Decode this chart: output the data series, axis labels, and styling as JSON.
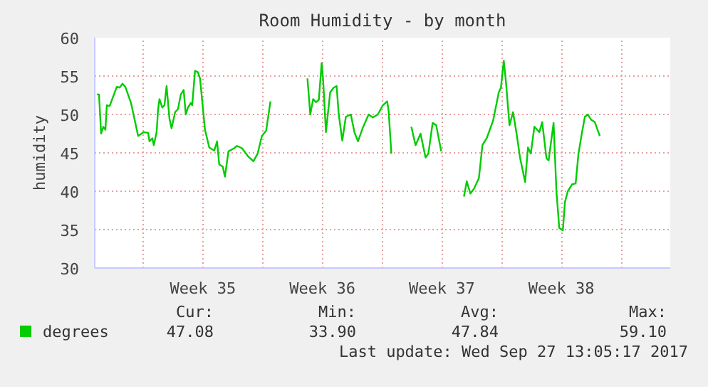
{
  "chart_data": {
    "type": "line",
    "title": "Room Humidity - by month",
    "ylabel": "humidity",
    "x": [
      "2017-08-25T07:00",
      "2017-08-25T10:00",
      "2017-08-25T13:00",
      "2017-08-25T16:00",
      "2017-08-25T19:00",
      "2017-08-25T21:00",
      "2017-08-26T01:00",
      "2017-08-26T07:00",
      "2017-08-26T11:00",
      "2017-08-26T15:00",
      "2017-08-26T19:00",
      "2017-08-26T23:00",
      "2017-08-27T07:00",
      "2017-08-27T17:00",
      "2017-08-28T01:00",
      "2017-08-28T07:00",
      "2017-08-28T09:00",
      "2017-08-28T13:00",
      "2017-08-28T15:00",
      "2017-08-28T19:00",
      "2017-08-28T21:00",
      "2017-08-28T23:00",
      "2017-08-29T03:00",
      "2017-08-29T06:00",
      "2017-08-29T09:00",
      "2017-08-29T13:00",
      "2017-08-29T16:00",
      "2017-08-29T21:00",
      "2017-08-30T01:00",
      "2017-08-30T05:00",
      "2017-08-30T09:00",
      "2017-08-30T12:00",
      "2017-08-30T15:00",
      "2017-08-30T19:00",
      "2017-08-30T21:00",
      "2017-08-31T01:00",
      "2017-08-31T05:00",
      "2017-08-31T08:00",
      "2017-08-31T15:00",
      "2017-08-31T21:00",
      "2017-09-01T04:00",
      "2017-09-01T08:00",
      "2017-09-01T11:00",
      "2017-09-01T16:00",
      "2017-09-01T19:00",
      "2017-09-02T00:00",
      "2017-09-02T08:00",
      "2017-09-02T12:00",
      "2017-09-02T19:00",
      "2017-09-03T03:00",
      "2017-09-03T11:00",
      "2017-09-03T17:00",
      "2017-09-03T23:00",
      "2017-09-04T05:00",
      "2017-09-04T11:00",
      "2017-09-05T14:00",
      "2017-09-06T15:00",
      "2017-09-06T19:00",
      "2017-09-06T23:00",
      "2017-09-07T03:00",
      "2017-09-07T07:00",
      "2017-09-07T11:00",
      "2017-09-07T13:00",
      "2017-09-07T17:00",
      "2017-09-07T23:00",
      "2017-09-08T04:00",
      "2017-09-08T08:00",
      "2017-09-08T11:00",
      "2017-09-08T16:00",
      "2017-09-08T21:00",
      "2017-09-09T04:00",
      "2017-09-09T09:00",
      "2017-09-09T14:00",
      "2017-09-09T21:00",
      "2017-09-10T05:00",
      "2017-09-10T11:00",
      "2017-09-10T18:00",
      "2017-09-11T01:00",
      "2017-09-11T07:00",
      "2017-09-11T09:00",
      "2017-09-11T13:00",
      "2017-09-12T02:00",
      "2017-09-12T17:00",
      "2017-09-12T23:00",
      "2017-09-13T06:00",
      "2017-09-13T13:00",
      "2017-09-13T17:00",
      "2017-09-13T23:00",
      "2017-09-14T04:00",
      "2017-09-14T11:00",
      "2017-09-15T04:00",
      "2017-09-15T19:00",
      "2017-09-15T23:00",
      "2017-09-16T04:00",
      "2017-09-16T09:00",
      "2017-09-16T16:00",
      "2017-09-16T21:00",
      "2017-09-17T03:00",
      "2017-09-17T12:00",
      "2017-09-17T20:00",
      "2017-09-17T23:00",
      "2017-09-18T03:00",
      "2017-09-18T06:00",
      "2017-09-18T11:00",
      "2017-09-18T16:00",
      "2017-09-18T21:00",
      "2017-09-19T02:00",
      "2017-09-19T09:00",
      "2017-09-19T13:00",
      "2017-09-19T17:00",
      "2017-09-19T22:00",
      "2017-09-20T05:00",
      "2017-09-20T09:00",
      "2017-09-20T15:00",
      "2017-09-20T18:00",
      "2017-09-21T01:00",
      "2017-09-21T05:00",
      "2017-09-21T09:00",
      "2017-09-21T14:00",
      "2017-09-21T17:00",
      "2017-09-21T21:00",
      "2017-09-22T03:00",
      "2017-09-22T08:00",
      "2017-09-22T12:00",
      "2017-09-22T17:00",
      "2017-09-22T21:00",
      "2017-09-23T01:00",
      "2017-09-23T06:00",
      "2017-09-23T11:00",
      "2017-09-23T16:00",
      "2017-09-23T18:00"
    ],
    "series": [
      {
        "name": "degrees",
        "color": "#00cc00",
        "values": [
          52.6,
          52.6,
          47.5,
          48.4,
          48.0,
          51.2,
          51.1,
          52.6,
          53.6,
          53.5,
          54.0,
          53.6,
          51.5,
          47.2,
          47.7,
          47.6,
          46.5,
          46.9,
          46.0,
          47.7,
          50.6,
          52.0,
          50.9,
          51.2,
          53.7,
          49.5,
          48.2,
          50.3,
          50.7,
          52.6,
          53.2,
          50.0,
          50.9,
          51.5,
          51.2,
          55.7,
          55.5,
          54.7,
          48.0,
          45.7,
          45.3,
          46.5,
          43.5,
          43.2,
          41.9,
          45.2,
          45.6,
          45.9,
          45.6,
          44.6,
          43.9,
          44.9,
          47.2,
          47.9,
          51.7,
          null,
          54.7,
          50.0,
          52.0,
          51.6,
          51.9,
          56.7,
          54.6,
          47.7,
          52.9,
          53.5,
          53.7,
          50.0,
          46.6,
          49.7,
          50.0,
          47.7,
          46.5,
          48.3,
          50.0,
          49.6,
          50.0,
          51.2,
          51.7,
          50.6,
          44.9,
          null,
          48.4,
          46.0,
          47.5,
          44.4,
          44.9,
          48.9,
          48.6,
          45.2,
          null,
          39.3,
          41.3,
          39.7,
          40.3,
          41.7,
          46.0,
          46.9,
          49.2,
          52.9,
          53.5,
          57.0,
          54.3,
          48.6,
          50.3,
          47.5,
          44.3,
          41.2,
          45.7,
          44.9,
          48.4,
          47.7,
          49.0,
          44.3,
          44.0,
          48.9,
          40.0,
          35.2,
          34.9,
          38.6,
          40.0,
          40.9,
          41.0,
          44.9,
          47.7,
          49.7,
          50.0,
          49.3,
          49.0,
          47.7,
          47.2
        ]
      }
    ],
    "xlim": [
      "2017-08-25T04:00",
      "2017-09-27T21:00"
    ],
    "xticks": [
      {
        "value": "2017-08-28",
        "label": null
      },
      {
        "value": "2017-08-31T12:00",
        "label": "Week 35"
      },
      {
        "value": "2017-09-04",
        "label": null
      },
      {
        "value": "2017-09-07T12:00",
        "label": "Week 36"
      },
      {
        "value": "2017-09-11",
        "label": null
      },
      {
        "value": "2017-09-14T12:00",
        "label": "Week 37"
      },
      {
        "value": "2017-09-18",
        "label": null
      },
      {
        "value": "2017-09-21T12:00",
        "label": "Week 38"
      },
      {
        "value": "2017-09-25",
        "label": null
      }
    ],
    "ylim": [
      30,
      60
    ],
    "yticks": [
      30,
      35,
      40,
      45,
      50,
      55,
      60
    ],
    "grid": true,
    "legend": "bottom",
    "line_style": "solid",
    "marker": "none",
    "annotations": [
      "Cur:",
      "Min:",
      "Avg:",
      "Max:",
      "47.08",
      "33.90",
      "47.84",
      "59.10",
      "Last update: Wed Sep 27 13:05:17 2017"
    ]
  }
}
